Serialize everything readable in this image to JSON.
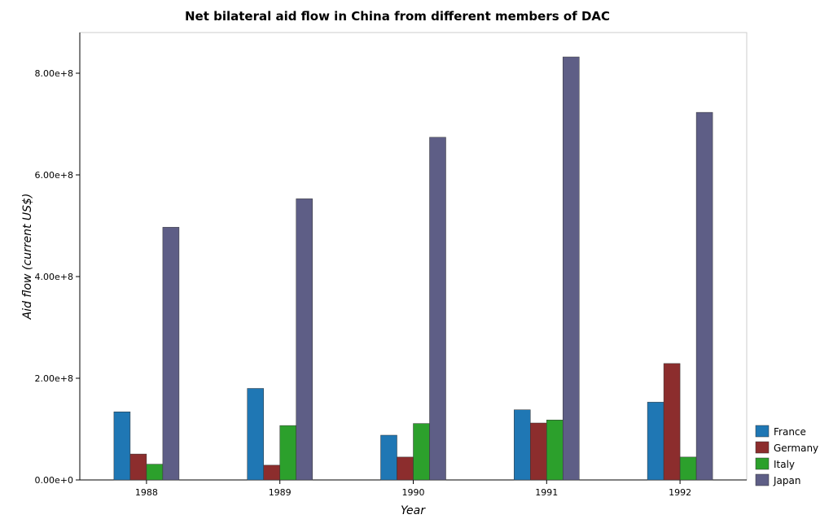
{
  "chart_data": {
    "type": "bar",
    "title": "Net bilateral aid flow in China from different members of DAC",
    "xlabel": "Year",
    "ylabel": "Aid flow (current US$)",
    "categories": [
      "1988",
      "1989",
      "1990",
      "1991",
      "1992"
    ],
    "ylim": [
      0,
      880000000
    ],
    "yticks": [
      0,
      200000000,
      400000000,
      600000000,
      800000000
    ],
    "ytick_labels": [
      "0.00e+0",
      "2.00e+8",
      "4.00e+8",
      "6.00e+8",
      "8.00e+8"
    ],
    "grid": false,
    "legend_position": "bottom-right",
    "series": [
      {
        "name": "France",
        "color": "#1f77b4",
        "values": [
          134000000,
          180000000,
          88000000,
          138000000,
          153000000
        ]
      },
      {
        "name": "Germany",
        "color": "#8c2d2d",
        "values": [
          51000000,
          29000000,
          45000000,
          112000000,
          229000000
        ]
      },
      {
        "name": "Italy",
        "color": "#2ca02c",
        "values": [
          31000000,
          107000000,
          111000000,
          118000000,
          45000000
        ]
      },
      {
        "name": "Japan",
        "color": "#5e5e86",
        "values": [
          497000000,
          553000000,
          674000000,
          832000000,
          723000000
        ]
      }
    ]
  }
}
